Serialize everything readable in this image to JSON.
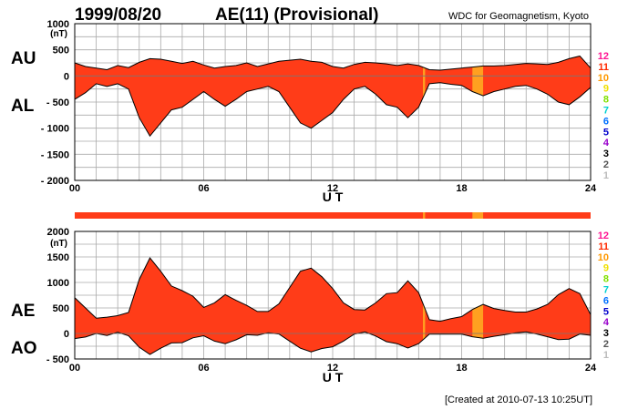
{
  "header": {
    "date": "1999/08/20",
    "title": "AE(11) (Provisional)",
    "org": "WDC for Geomagnetism, Kyoto"
  },
  "footer": {
    "created": "[Created at 2010-07-13 10:25UT]"
  },
  "colors": {
    "fill_main": "#ff3c18",
    "fill_alt": "#ffa020",
    "outline": "#000000",
    "grid": "#aaaaaa",
    "indicator_band": "#ff3c18"
  },
  "station_scale": [
    {
      "label": "12",
      "color": "#ff1493"
    },
    {
      "label": "11",
      "color": "#ff2a00"
    },
    {
      "label": "10",
      "color": "#ff9900"
    },
    {
      "label": "9",
      "color": "#f0e000"
    },
    {
      "label": "8",
      "color": "#80e000"
    },
    {
      "label": "7",
      "color": "#00d0d0"
    },
    {
      "label": "6",
      "color": "#0070ff"
    },
    {
      "label": "5",
      "color": "#0000cc"
    },
    {
      "label": "4",
      "color": "#9900cc"
    },
    {
      "label": "3",
      "color": "#000000"
    },
    {
      "label": "2",
      "color": "#555555"
    },
    {
      "label": "1",
      "color": "#bbbbbb"
    }
  ],
  "chart_data": [
    {
      "type": "area",
      "panel": "AU/AL",
      "left_labels": [
        "AU",
        "AL"
      ],
      "unit": "(nT)",
      "xlabel": "U T",
      "xlim": [
        0,
        24
      ],
      "ylim": [
        -2000,
        1000
      ],
      "x_ticks": [
        "00",
        "06",
        "12",
        "18",
        "24"
      ],
      "y_ticks": [
        "1000",
        "500",
        "0",
        "- 500",
        "- 1000",
        "- 1500",
        "- 2000"
      ],
      "y_tick_values": [
        1000,
        500,
        0,
        -500,
        -1000,
        -1500,
        -2000
      ],
      "grid": true,
      "highlight_ranges": [
        [
          16.2,
          16.3
        ],
        [
          18.5,
          19.0
        ]
      ],
      "series": [
        {
          "name": "AU",
          "x": [
            0,
            0.5,
            1,
            1.5,
            2,
            2.5,
            3,
            3.5,
            4,
            4.5,
            5,
            5.5,
            6,
            6.5,
            7,
            7.5,
            8,
            8.5,
            9,
            9.5,
            10,
            10.5,
            11,
            11.5,
            12,
            12.5,
            13,
            13.5,
            14,
            14.5,
            15,
            15.5,
            16,
            16.5,
            17,
            17.5,
            18,
            18.5,
            19,
            19.5,
            20,
            20.5,
            21,
            21.5,
            22,
            22.5,
            23,
            23.5,
            24
          ],
          "values": [
            250,
            180,
            150,
            120,
            200,
            160,
            260,
            330,
            320,
            280,
            240,
            280,
            210,
            150,
            180,
            200,
            250,
            180,
            230,
            280,
            300,
            320,
            280,
            260,
            180,
            150,
            220,
            260,
            250,
            230,
            200,
            230,
            200,
            120,
            110,
            130,
            150,
            170,
            190,
            190,
            200,
            220,
            240,
            230,
            220,
            260,
            330,
            380,
            150
          ]
        },
        {
          "name": "AL",
          "x": [
            0,
            0.5,
            1,
            1.5,
            2,
            2.5,
            3,
            3.5,
            4,
            4.5,
            5,
            5.5,
            6,
            6.5,
            7,
            7.5,
            8,
            8.5,
            9,
            9.5,
            10,
            10.5,
            11,
            11.5,
            12,
            12.5,
            13,
            13.5,
            14,
            14.5,
            15,
            15.5,
            16,
            16.5,
            17,
            17.5,
            18,
            18.5,
            19,
            19.5,
            20,
            20.5,
            21,
            21.5,
            22,
            22.5,
            23,
            23.5,
            24
          ],
          "values": [
            -450,
            -320,
            -150,
            -200,
            -150,
            -250,
            -800,
            -1150,
            -900,
            -650,
            -600,
            -450,
            -300,
            -450,
            -580,
            -450,
            -300,
            -250,
            -200,
            -300,
            -600,
            -900,
            -1000,
            -850,
            -700,
            -450,
            -250,
            -200,
            -350,
            -550,
            -600,
            -800,
            -600,
            -150,
            -130,
            -160,
            -180,
            -300,
            -380,
            -300,
            -250,
            -200,
            -180,
            -250,
            -350,
            -500,
            -550,
            -400,
            -220
          ]
        }
      ]
    },
    {
      "type": "area",
      "panel": "AE/AO",
      "left_labels": [
        "AE",
        "AO"
      ],
      "unit": "(nT)",
      "xlabel": "U T",
      "xlim": [
        0,
        24
      ],
      "ylim": [
        -500,
        2000
      ],
      "x_ticks": [
        "00",
        "06",
        "12",
        "18",
        "24"
      ],
      "y_ticks": [
        "2000",
        "1500",
        "1000",
        "500",
        "0",
        "- 500"
      ],
      "y_tick_values": [
        2000,
        1500,
        1000,
        500,
        0,
        -500
      ],
      "grid": true,
      "highlight_ranges": [
        [
          16.2,
          16.3
        ],
        [
          18.5,
          19.0
        ]
      ],
      "series": [
        {
          "name": "AE",
          "x": [
            0,
            0.5,
            1,
            1.5,
            2,
            2.5,
            3,
            3.5,
            4,
            4.5,
            5,
            5.5,
            6,
            6.5,
            7,
            7.5,
            8,
            8.5,
            9,
            9.5,
            10,
            10.5,
            11,
            11.5,
            12,
            12.5,
            13,
            13.5,
            14,
            14.5,
            15,
            15.5,
            16,
            16.5,
            17,
            17.5,
            18,
            18.5,
            19,
            19.5,
            20,
            20.5,
            21,
            21.5,
            22,
            22.5,
            23,
            23.5,
            24
          ],
          "values": [
            700,
            500,
            300,
            320,
            350,
            410,
            1060,
            1480,
            1220,
            930,
            840,
            730,
            510,
            600,
            760,
            650,
            550,
            430,
            430,
            580,
            900,
            1220,
            1280,
            1110,
            880,
            600,
            470,
            460,
            600,
            780,
            800,
            1030,
            800,
            270,
            240,
            290,
            330,
            470,
            570,
            490,
            450,
            420,
            420,
            480,
            570,
            760,
            880,
            780,
            370
          ]
        },
        {
          "name": "AO",
          "x": [
            0,
            0.5,
            1,
            1.5,
            2,
            2.5,
            3,
            3.5,
            4,
            4.5,
            5,
            5.5,
            6,
            6.5,
            7,
            7.5,
            8,
            8.5,
            9,
            9.5,
            10,
            10.5,
            11,
            11.5,
            12,
            12.5,
            13,
            13.5,
            14,
            14.5,
            15,
            15.5,
            16,
            16.5,
            17,
            17.5,
            18,
            18.5,
            19,
            19.5,
            20,
            20.5,
            21,
            21.5,
            22,
            22.5,
            23,
            23.5,
            24
          ],
          "values": [
            -100,
            -70,
            0,
            -40,
            25,
            -45,
            -270,
            -410,
            -290,
            -185,
            -180,
            -85,
            -45,
            -150,
            -200,
            -125,
            -25,
            -35,
            15,
            -10,
            -150,
            -290,
            -360,
            -295,
            -260,
            -150,
            -15,
            30,
            -50,
            -160,
            -200,
            -285,
            -200,
            -15,
            -10,
            -15,
            -15,
            -65,
            -95,
            -55,
            -25,
            10,
            30,
            -10,
            -65,
            -120,
            -110,
            -10,
            -35
          ]
        }
      ]
    }
  ]
}
